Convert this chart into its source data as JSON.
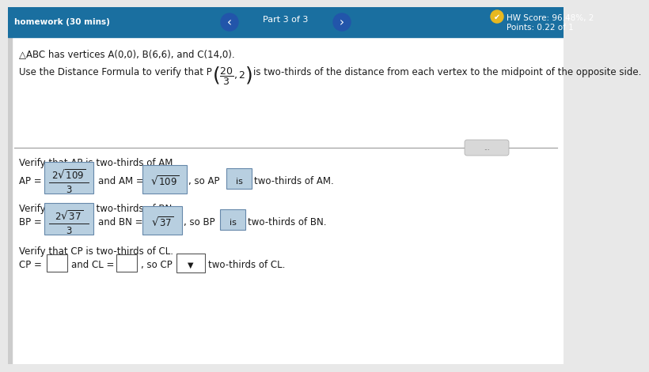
{
  "header_bg": "#1a6fa0",
  "header_text_left": "homework (30 mins)",
  "header_part": "Part 3 of 3",
  "header_score": "HW Score: 96.48%, 2",
  "header_points": "Points: 0.22 of 1",
  "main_bg": "#e8e8e8",
  "content_bg": "#ffffff",
  "title_line": "△ABC has vertices A(0,0), B(6,6), and C(14,0).",
  "section1_label": "Verify that AP is two-thirds of AM.",
  "section2_label": "Verify that BP is two-thirds of BN.",
  "section3_label": "Verify that CP is two-thirds of CL.",
  "box_fill": "#b8cfe0",
  "box_empty_fill": "#ffffff",
  "text_color": "#1a1a1a",
  "divider_color": "#999999"
}
